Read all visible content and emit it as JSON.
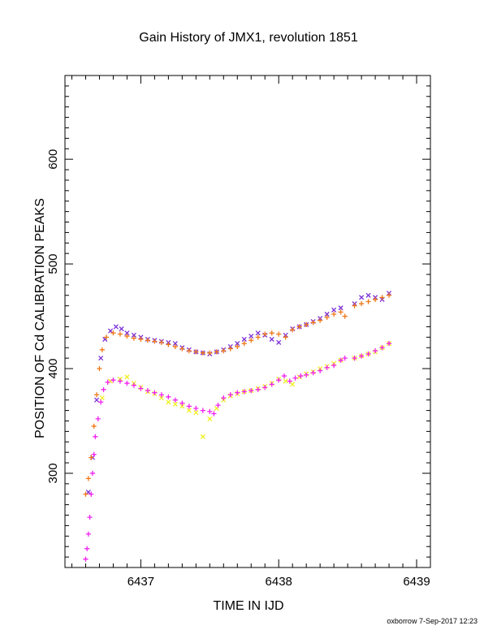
{
  "chart_data": {
    "type": "scatter",
    "title": "Gain History of JMX1, revolution 1851",
    "xlabel": "TIME IN IJD",
    "ylabel": "POSITION OF Cd CALIBRATION PEAKS",
    "xlim": [
      6436.45,
      6439.1
    ],
    "ylim": [
      210,
      680
    ],
    "xticks": [
      6437,
      6438,
      6439
    ],
    "yticks": [
      300,
      400,
      500,
      600
    ],
    "grid": false,
    "series": [
      {
        "marker": "x",
        "color": "#7b2fd6",
        "points": [
          [
            6436.62,
            282
          ],
          [
            6436.65,
            315
          ],
          [
            6436.68,
            370
          ],
          [
            6436.71,
            410
          ],
          [
            6436.74,
            428
          ],
          [
            6436.78,
            436
          ],
          [
            6436.82,
            440
          ],
          [
            6436.86,
            438
          ],
          [
            6436.9,
            434
          ],
          [
            6436.95,
            432
          ],
          [
            6437.0,
            430
          ],
          [
            6437.05,
            428
          ],
          [
            6437.1,
            427
          ],
          [
            6437.15,
            426
          ],
          [
            6437.2,
            425
          ],
          [
            6437.25,
            424
          ],
          [
            6437.3,
            420
          ],
          [
            6437.35,
            418
          ],
          [
            6437.4,
            416
          ],
          [
            6437.45,
            415
          ],
          [
            6437.5,
            414
          ],
          [
            6437.55,
            416
          ],
          [
            6437.6,
            418
          ],
          [
            6437.65,
            421
          ],
          [
            6437.7,
            424
          ],
          [
            6437.75,
            428
          ],
          [
            6437.8,
            431
          ],
          [
            6437.85,
            434
          ],
          [
            6437.9,
            432
          ],
          [
            6437.95,
            428
          ],
          [
            6438.0,
            425
          ],
          [
            6438.05,
            432
          ],
          [
            6438.1,
            438
          ],
          [
            6438.15,
            440
          ],
          [
            6438.2,
            442
          ],
          [
            6438.25,
            445
          ],
          [
            6438.3,
            448
          ],
          [
            6438.35,
            452
          ],
          [
            6438.4,
            456
          ],
          [
            6438.45,
            458
          ],
          [
            6438.55,
            462
          ],
          [
            6438.6,
            468
          ],
          [
            6438.65,
            470
          ],
          [
            6438.7,
            468
          ],
          [
            6438.75,
            466
          ],
          [
            6438.8,
            472
          ]
        ]
      },
      {
        "marker": "+",
        "color": "#f07818",
        "points": [
          [
            6436.6,
            280
          ],
          [
            6436.62,
            295
          ],
          [
            6436.64,
            315
          ],
          [
            6436.66,
            345
          ],
          [
            6436.68,
            375
          ],
          [
            6436.7,
            400
          ],
          [
            6436.72,
            418
          ],
          [
            6436.75,
            430
          ],
          [
            6436.8,
            434
          ],
          [
            6436.85,
            433
          ],
          [
            6436.9,
            431
          ],
          [
            6436.95,
            429
          ],
          [
            6437.0,
            428
          ],
          [
            6437.05,
            427
          ],
          [
            6437.1,
            426
          ],
          [
            6437.15,
            425
          ],
          [
            6437.2,
            423
          ],
          [
            6437.25,
            421
          ],
          [
            6437.3,
            419
          ],
          [
            6437.35,
            417
          ],
          [
            6437.4,
            416
          ],
          [
            6437.45,
            415
          ],
          [
            6437.5,
            415
          ],
          [
            6437.55,
            416
          ],
          [
            6437.6,
            417
          ],
          [
            6437.65,
            419
          ],
          [
            6437.7,
            421
          ],
          [
            6437.75,
            424
          ],
          [
            6437.8,
            427
          ],
          [
            6437.85,
            430
          ],
          [
            6437.9,
            433
          ],
          [
            6437.95,
            434
          ],
          [
            6438.0,
            433
          ],
          [
            6438.05,
            430
          ],
          [
            6438.1,
            437
          ],
          [
            6438.15,
            440
          ],
          [
            6438.2,
            442
          ],
          [
            6438.25,
            444
          ],
          [
            6438.3,
            446
          ],
          [
            6438.35,
            449
          ],
          [
            6438.4,
            452
          ],
          [
            6438.45,
            454
          ],
          [
            6438.48,
            450
          ],
          [
            6438.55,
            460
          ],
          [
            6438.6,
            462
          ],
          [
            6438.65,
            464
          ],
          [
            6438.7,
            466
          ],
          [
            6438.75,
            468
          ],
          [
            6438.8,
            470
          ]
        ]
      },
      {
        "marker": "x",
        "color": "#f0f020",
        "points": [
          [
            6436.72,
            372
          ],
          [
            6436.78,
            388
          ],
          [
            6436.85,
            390
          ],
          [
            6436.9,
            392
          ],
          [
            6436.95,
            386
          ],
          [
            6437.0,
            382
          ],
          [
            6437.05,
            378
          ],
          [
            6437.1,
            376
          ],
          [
            6437.15,
            372
          ],
          [
            6437.2,
            368
          ],
          [
            6437.25,
            366
          ],
          [
            6437.3,
            364
          ],
          [
            6437.35,
            360
          ],
          [
            6437.4,
            358
          ],
          [
            6437.45,
            335
          ],
          [
            6437.5,
            352
          ],
          [
            6437.55,
            362
          ],
          [
            6437.6,
            370
          ],
          [
            6437.65,
            374
          ],
          [
            6437.7,
            376
          ],
          [
            6437.75,
            378
          ],
          [
            6437.8,
            379
          ],
          [
            6437.85,
            381
          ],
          [
            6437.9,
            383
          ],
          [
            6437.95,
            386
          ],
          [
            6438.0,
            390
          ],
          [
            6438.05,
            388
          ],
          [
            6438.1,
            385
          ],
          [
            6438.15,
            392
          ],
          [
            6438.2,
            395
          ],
          [
            6438.25,
            397
          ],
          [
            6438.3,
            400
          ],
          [
            6438.35,
            402
          ],
          [
            6438.4,
            405
          ],
          [
            6438.45,
            408
          ],
          [
            6438.55,
            410
          ],
          [
            6438.6,
            412
          ],
          [
            6438.65,
            414
          ],
          [
            6438.7,
            416
          ],
          [
            6438.75,
            420
          ],
          [
            6438.8,
            424
          ]
        ]
      },
      {
        "marker": "+",
        "color": "#f020f0",
        "points": [
          [
            6436.6,
            218
          ],
          [
            6436.61,
            228
          ],
          [
            6436.62,
            242
          ],
          [
            6436.63,
            258
          ],
          [
            6436.64,
            280
          ],
          [
            6436.65,
            300
          ],
          [
            6436.66,
            318
          ],
          [
            6436.67,
            335
          ],
          [
            6436.69,
            352
          ],
          [
            6436.71,
            368
          ],
          [
            6436.73,
            380
          ],
          [
            6436.76,
            387
          ],
          [
            6436.8,
            389
          ],
          [
            6436.85,
            388
          ],
          [
            6436.9,
            386
          ],
          [
            6436.95,
            384
          ],
          [
            6437.0,
            381
          ],
          [
            6437.05,
            379
          ],
          [
            6437.1,
            377
          ],
          [
            6437.15,
            375
          ],
          [
            6437.2,
            373
          ],
          [
            6437.25,
            370
          ],
          [
            6437.3,
            367
          ],
          [
            6437.35,
            364
          ],
          [
            6437.4,
            362
          ],
          [
            6437.45,
            360
          ],
          [
            6437.5,
            359
          ],
          [
            6437.53,
            357
          ],
          [
            6437.56,
            365
          ],
          [
            6437.6,
            372
          ],
          [
            6437.65,
            375
          ],
          [
            6437.7,
            377
          ],
          [
            6437.75,
            378
          ],
          [
            6437.8,
            379
          ],
          [
            6437.85,
            380
          ],
          [
            6437.9,
            382
          ],
          [
            6437.95,
            385
          ],
          [
            6438.0,
            389
          ],
          [
            6438.04,
            393
          ],
          [
            6438.08,
            388
          ],
          [
            6438.12,
            391
          ],
          [
            6438.16,
            393
          ],
          [
            6438.2,
            394
          ],
          [
            6438.25,
            396
          ],
          [
            6438.3,
            398
          ],
          [
            6438.35,
            401
          ],
          [
            6438.4,
            403
          ],
          [
            6438.45,
            408
          ],
          [
            6438.48,
            410
          ],
          [
            6438.55,
            410
          ],
          [
            6438.6,
            412
          ],
          [
            6438.65,
            414
          ],
          [
            6438.7,
            417
          ],
          [
            6438.75,
            420
          ],
          [
            6438.8,
            424
          ]
        ]
      }
    ]
  },
  "footer": "oxborrow  7-Sep-2017 12:23"
}
